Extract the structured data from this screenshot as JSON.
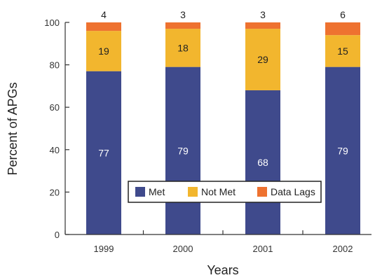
{
  "chart_data": {
    "type": "bar",
    "stacked": true,
    "categories": [
      "1999",
      "2000",
      "2001",
      "2002"
    ],
    "series": [
      {
        "name": "Met",
        "values": [
          77,
          79,
          68,
          79
        ],
        "color": "#3F4A8C",
        "label_color": "#ffffff"
      },
      {
        "name": "Not Met",
        "values": [
          19,
          18,
          29,
          15
        ],
        "color": "#F2B62E",
        "label_color": "#222222"
      },
      {
        "name": "Data Lags",
        "values": [
          4,
          3,
          3,
          6
        ],
        "color": "#EE7230",
        "label_color": "#222222"
      }
    ],
    "xlabel": "Years",
    "ylabel": "Percent of APGs",
    "ylim": [
      0,
      100
    ],
    "yticks": [
      0,
      20,
      40,
      60,
      80,
      100
    ],
    "grid": false,
    "legend": "lower-right-inside"
  }
}
